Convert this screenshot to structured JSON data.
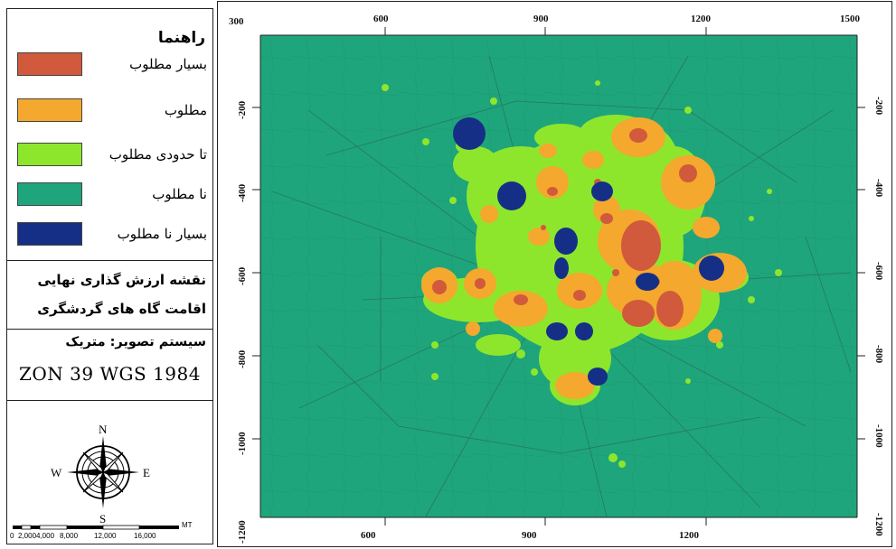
{
  "legend": {
    "title": "راهنما",
    "items": [
      {
        "label": "بسیار مطلوب",
        "color": "#d05a3b"
      },
      {
        "label": "مطلوب",
        "color": "#f4a82d"
      },
      {
        "label": "تا حدودی مطلوب",
        "color": "#8ee62c"
      },
      {
        "label": "نا مطلوب",
        "color": "#1ea57b"
      },
      {
        "label": "بسیار نا مطلوب",
        "color": "#152f87"
      }
    ]
  },
  "map_title": {
    "line1": "نقشه ارزش گذاری نهایی",
    "line2": "اقامت گاه های گردشگری"
  },
  "projection": {
    "label": "سیستم تصویر: متریک",
    "zone": "ZON 39 WGS 1984"
  },
  "compass": {
    "n": "N",
    "s": "S",
    "e": "E",
    "w": "W"
  },
  "scale_bar": {
    "labels": [
      "0",
      "2,000",
      "4,000",
      "8,000",
      "12,000",
      "16,000"
    ],
    "unit": "MT"
  },
  "axes": {
    "x_top": [
      "300",
      "600",
      "900",
      "1200",
      "1500"
    ],
    "x_bottom": [
      "600",
      "900",
      "1200"
    ],
    "y_left": [
      "-200",
      "-400",
      "-600",
      "-800",
      "-1000",
      "-1200"
    ],
    "y_right": [
      "-200",
      "-400",
      "-600",
      "-800",
      "-1000",
      "-1200"
    ]
  },
  "colors": {
    "background": "#1ea57b",
    "border": "#222222"
  }
}
